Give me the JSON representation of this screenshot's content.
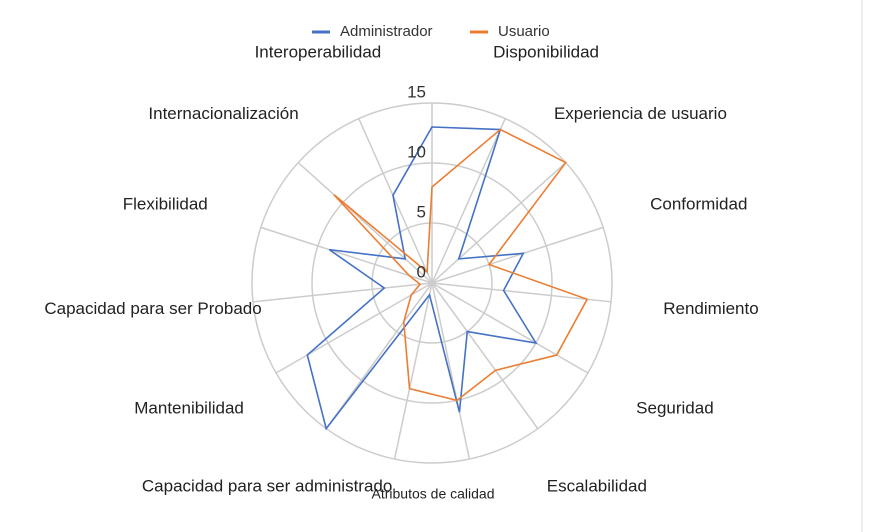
{
  "chart_data": {
    "type": "radar",
    "x_label": "Atributos de calidad",
    "categories": [
      null,
      "Disponibilidad",
      "Experiencia de usuario",
      "Conformidad",
      "Rendimiento",
      "Seguridad",
      "Escalabilidad",
      null,
      null,
      "Capacidad para ser administrado",
      "Mantenibilidad",
      "Capacidad para ser Probado",
      "Flexibilidad",
      "Internacionalización",
      "Interoperabilidad"
    ],
    "series": [
      {
        "name": "Administrador",
        "color": "#4472c4",
        "values": [
          13,
          14,
          3,
          8,
          6,
          10,
          5,
          11,
          1,
          15,
          12,
          4,
          9,
          3,
          8
        ]
      },
      {
        "name": "Usuario",
        "color": "#ed7d31",
        "values": [
          8,
          14,
          15,
          5,
          13,
          12,
          9,
          10,
          9,
          4,
          2,
          1,
          2,
          11,
          1
        ]
      }
    ],
    "ylim": [
      0,
      15
    ],
    "yticks": [
      0,
      5,
      10,
      15
    ],
    "grid": true
  }
}
